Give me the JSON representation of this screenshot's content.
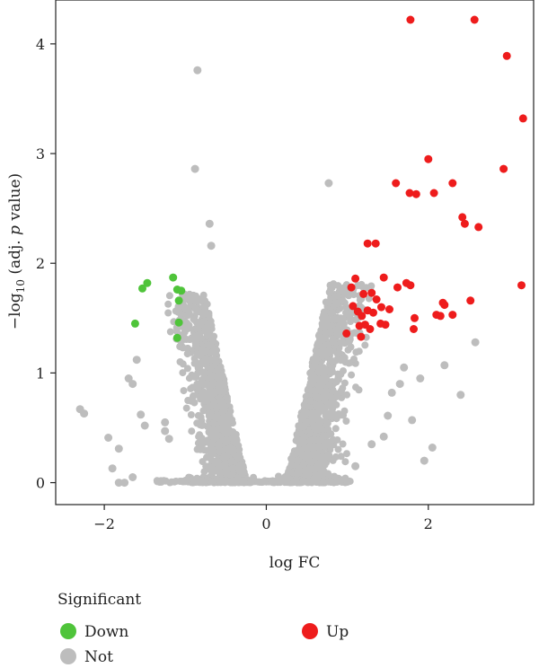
{
  "chart_data": {
    "type": "scatter",
    "title": "",
    "xlabel": "log FC",
    "ylabel": {
      "prefix": "−log",
      "subscript": "10",
      "middle": " (adj. ",
      "italic": "p",
      "suffix": " value)"
    },
    "xlim": [
      -2.6,
      3.3
    ],
    "ylim": [
      -0.2,
      4.4
    ],
    "xticks": [
      -2,
      0,
      2
    ],
    "xtick_labels": [
      "−2",
      "0",
      "2"
    ],
    "yticks": [
      0,
      1,
      2,
      3,
      4
    ],
    "ytick_labels": [
      "0",
      "1",
      "2",
      "3",
      "4"
    ],
    "grid": false,
    "legend": {
      "title": "Significant",
      "placement": "bottom",
      "entries": [
        {
          "label": "Down",
          "color": "#4fc43a"
        },
        {
          "label": "Not",
          "color": "#bdbdbd"
        },
        {
          "label": "Up",
          "color": "#ee1c1c"
        }
      ]
    },
    "series": [
      {
        "name": "Down",
        "color": "#4fc43a",
        "points": [
          [
            -1.47,
            1.82
          ],
          [
            -1.53,
            1.77
          ],
          [
            -1.15,
            1.87
          ],
          [
            -1.1,
            1.76
          ],
          [
            -1.05,
            1.75
          ],
          [
            -1.08,
            1.66
          ],
          [
            -1.62,
            1.45
          ],
          [
            -1.08,
            1.46
          ],
          [
            -1.1,
            1.32
          ]
        ]
      },
      {
        "name": "Not",
        "color": "#bdbdbd",
        "points": [
          [
            -0.85,
            3.76
          ],
          [
            -0.88,
            2.86
          ],
          [
            -0.7,
            2.36
          ],
          [
            -0.68,
            2.16
          ],
          [
            0.77,
            2.73
          ],
          [
            2.58,
            1.28
          ],
          [
            2.2,
            1.07
          ],
          [
            2.4,
            0.8
          ],
          [
            -2.3,
            0.67
          ],
          [
            -2.25,
            0.63
          ],
          [
            -1.95,
            0.41
          ],
          [
            -1.82,
            0.31
          ],
          [
            -1.75,
            0.0
          ],
          [
            -1.82,
            0.0
          ],
          [
            -1.9,
            0.13
          ],
          [
            -1.65,
            0.05
          ],
          [
            -1.5,
            0.52
          ],
          [
            -1.55,
            0.62
          ],
          [
            -1.65,
            0.9
          ],
          [
            -1.7,
            0.95
          ],
          [
            -1.6,
            1.12
          ],
          [
            -1.25,
            0.47
          ],
          [
            -1.25,
            0.55
          ],
          [
            -1.2,
            0.4
          ],
          [
            1.8,
            0.57
          ],
          [
            1.95,
            0.2
          ],
          [
            1.65,
            0.9
          ],
          [
            1.9,
            0.95
          ],
          [
            1.7,
            1.05
          ],
          [
            1.55,
            0.82
          ],
          [
            1.5,
            0.61
          ],
          [
            1.45,
            0.42
          ],
          [
            2.05,
            0.32
          ],
          [
            1.1,
            0.15
          ],
          [
            1.3,
            0.35
          ]
        ]
      },
      {
        "name": "Up",
        "color": "#ee1c1c",
        "points": [
          [
            1.78,
            4.22
          ],
          [
            2.57,
            4.22
          ],
          [
            2.97,
            3.89
          ],
          [
            3.17,
            3.32
          ],
          [
            2.0,
            2.95
          ],
          [
            2.93,
            2.86
          ],
          [
            1.6,
            2.73
          ],
          [
            1.77,
            2.64
          ],
          [
            1.85,
            2.63
          ],
          [
            2.07,
            2.64
          ],
          [
            2.3,
            2.73
          ],
          [
            2.42,
            2.42
          ],
          [
            2.45,
            2.36
          ],
          [
            2.62,
            2.33
          ],
          [
            1.25,
            2.18
          ],
          [
            1.35,
            2.18
          ],
          [
            1.1,
            1.86
          ],
          [
            1.45,
            1.87
          ],
          [
            1.73,
            1.82
          ],
          [
            1.78,
            1.8
          ],
          [
            3.15,
            1.8
          ],
          [
            1.05,
            1.78
          ],
          [
            1.62,
            1.78
          ],
          [
            1.3,
            1.73
          ],
          [
            1.2,
            1.72
          ],
          [
            1.36,
            1.67
          ],
          [
            2.52,
            1.66
          ],
          [
            2.18,
            1.64
          ],
          [
            2.2,
            1.62
          ],
          [
            1.07,
            1.61
          ],
          [
            1.42,
            1.6
          ],
          [
            1.52,
            1.58
          ],
          [
            1.13,
            1.56
          ],
          [
            1.25,
            1.57
          ],
          [
            1.32,
            1.55
          ],
          [
            1.18,
            1.52
          ],
          [
            1.83,
            1.5
          ],
          [
            2.1,
            1.53
          ],
          [
            2.15,
            1.52
          ],
          [
            2.3,
            1.53
          ],
          [
            1.41,
            1.45
          ],
          [
            1.47,
            1.44
          ],
          [
            1.22,
            1.44
          ],
          [
            1.15,
            1.43
          ],
          [
            1.28,
            1.4
          ],
          [
            1.82,
            1.4
          ],
          [
            0.99,
            1.36
          ],
          [
            1.17,
            1.33
          ]
        ]
      }
    ]
  }
}
